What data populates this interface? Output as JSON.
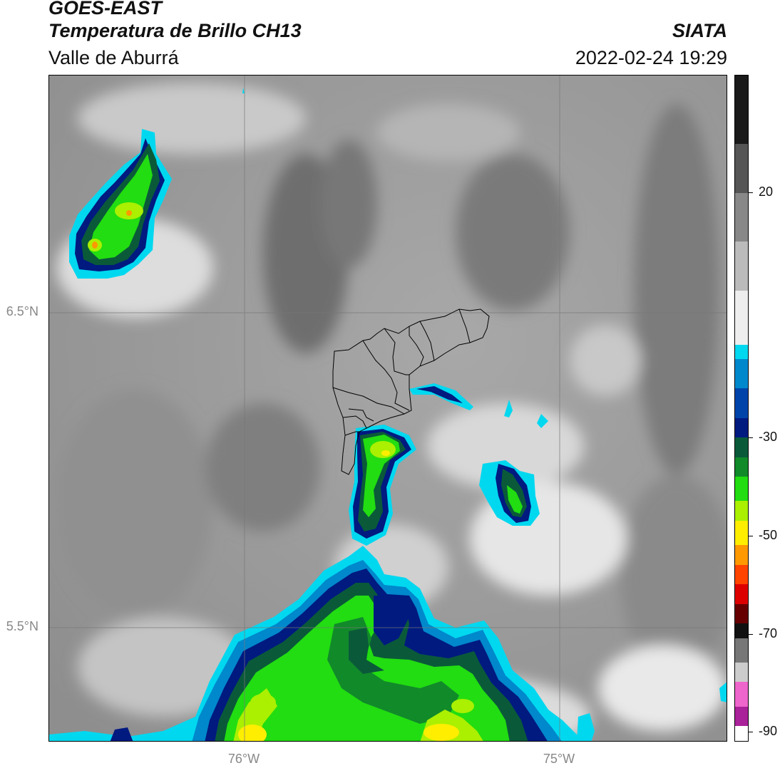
{
  "header": {
    "satellite": "GOES-EAST",
    "product": "Temperatura de Brillo CH13",
    "region": "Valle de Aburrá",
    "organization": "SIATA",
    "timestamp": "2022-02-24 19:29"
  },
  "map": {
    "lat_labels": [
      "6.5°N",
      "5.5°N"
    ],
    "lon_labels": [
      "76°W",
      "75°W"
    ]
  },
  "colorbar": {
    "tick_labels": [
      "20",
      "-30",
      "-50",
      "-70",
      "-90"
    ],
    "tick_values": [
      20,
      -30,
      -50,
      -70,
      -90
    ],
    "range": [
      -92,
      44
    ],
    "stops": [
      {
        "from": 44,
        "to": 30,
        "color": "#1a1a1a"
      },
      {
        "from": 30,
        "to": 20,
        "color": "#555555"
      },
      {
        "from": 20,
        "to": 10,
        "color": "#888888"
      },
      {
        "from": 10,
        "to": 0,
        "color": "#bbbbbb"
      },
      {
        "from": 0,
        "to": -11,
        "color": "#eeeeee"
      },
      {
        "from": -11,
        "to": -14,
        "color": "#00d8f0"
      },
      {
        "from": -14,
        "to": -20,
        "color": "#0088cc"
      },
      {
        "from": -20,
        "to": -26,
        "color": "#0044aa"
      },
      {
        "from": -26,
        "to": -30,
        "color": "#001a80"
      },
      {
        "from": -30,
        "to": -34,
        "color": "#0a5a3a"
      },
      {
        "from": -34,
        "to": -38,
        "color": "#118a2a"
      },
      {
        "from": -38,
        "to": -43,
        "color": "#22dd11"
      },
      {
        "from": -43,
        "to": -47,
        "color": "#aaf000"
      },
      {
        "from": -47,
        "to": -52,
        "color": "#ffee00"
      },
      {
        "from": -52,
        "to": -56,
        "color": "#ff9900"
      },
      {
        "from": -56,
        "to": -60,
        "color": "#ff4400"
      },
      {
        "from": -60,
        "to": -64,
        "color": "#dd0000"
      },
      {
        "from": -64,
        "to": -68,
        "color": "#660000"
      },
      {
        "from": -68,
        "to": -71,
        "color": "#111111"
      },
      {
        "from": -71,
        "to": -76,
        "color": "#777777"
      },
      {
        "from": -76,
        "to": -80,
        "color": "#cccccc"
      },
      {
        "from": -80,
        "to": -85,
        "color": "#ee66cc"
      },
      {
        "from": -85,
        "to": -89,
        "color": "#aa2299"
      },
      {
        "from": -89,
        "to": -92,
        "color": "#ffffff"
      }
    ]
  },
  "colors": {
    "cold_top_dark": "#001a80",
    "cold_top_green": "#22dd11",
    "cold_top_yellow": "#ffee00",
    "cold_edge_cyan": "#00d8f0",
    "background_gray": "#8a8a8a"
  }
}
